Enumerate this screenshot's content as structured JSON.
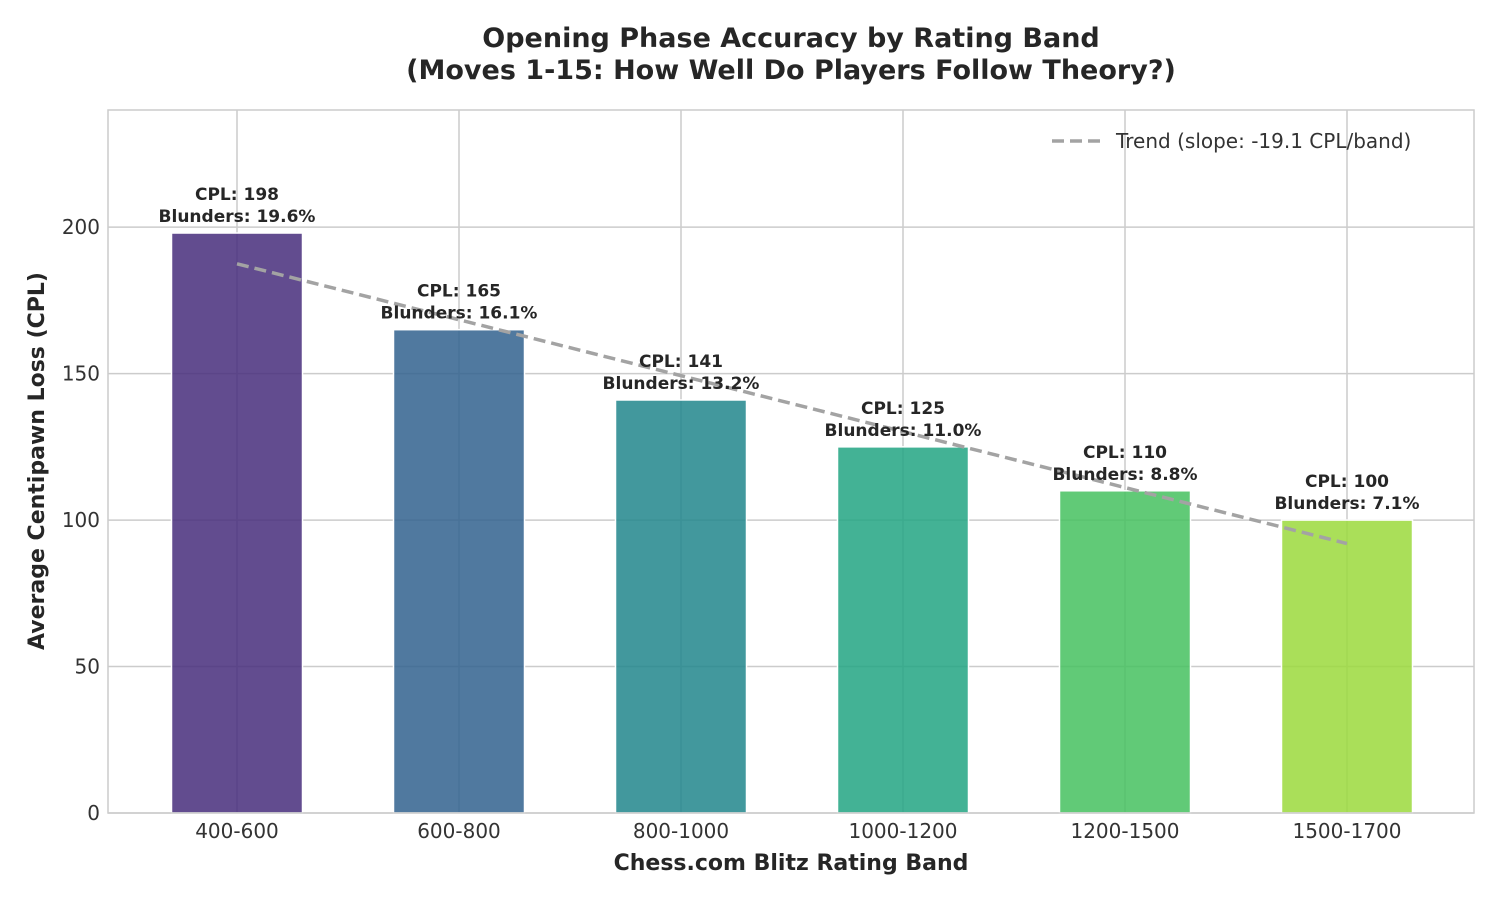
{
  "chart_data": {
    "type": "bar",
    "title": "Opening Phase Accuracy by Rating Band",
    "subtitle": "(Moves 1-15: How Well Do Players Follow Theory?)",
    "xlabel": "Chess.com Blitz Rating Band",
    "ylabel": "Average Centipawn Loss (CPL)",
    "categories": [
      "400-600",
      "600-800",
      "800-1000",
      "1000-1200",
      "1200-1500",
      "1500-1700"
    ],
    "values": [
      198,
      165,
      141,
      125,
      110,
      100
    ],
    "blunder_rates": [
      "19.6%",
      "16.1%",
      "13.2%",
      "11.0%",
      "8.8%",
      "7.1%"
    ],
    "bar_labels_cpl": [
      "CPL: 198",
      "CPL: 165",
      "CPL: 141",
      "CPL: 125",
      "CPL: 110",
      "CPL: 100"
    ],
    "bar_labels_blunders": [
      "Blunders: 19.6%",
      "Blunders: 16.1%",
      "Blunders: 13.2%",
      "Blunders: 11.0%",
      "Blunders: 8.8%",
      "Blunders: 7.1%"
    ],
    "bar_colors": [
      "#472d7b",
      "#31618e",
      "#21868c",
      "#22a583",
      "#45c15f",
      "#9bd93c"
    ],
    "ylim": [
      0,
      240
    ],
    "yticks": [
      0,
      50,
      100,
      150,
      200
    ],
    "grid": true,
    "trend": {
      "label": "Trend (slope: -19.1 CPL/band)",
      "start": 187.5,
      "end": 92.0,
      "color": "#999999",
      "style": "dashed"
    },
    "legend_position": "top-right"
  }
}
